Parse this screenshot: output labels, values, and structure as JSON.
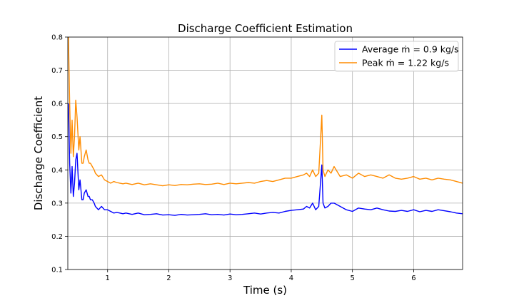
{
  "chart_data": {
    "type": "line",
    "title": "Discharge Coefficient Estimation",
    "xlabel": "Time (s)",
    "ylabel": "Discharge Coefficient",
    "xlim": [
      0.35,
      6.8
    ],
    "ylim": [
      0.1,
      0.8
    ],
    "xticks": [
      1,
      2,
      3,
      4,
      5,
      6
    ],
    "yticks": [
      0.1,
      0.2,
      0.3,
      0.4,
      0.5,
      0.6,
      0.7,
      0.8
    ],
    "grid": true,
    "legend_position": "top-right",
    "series": [
      {
        "name": "Average ṁ = 0.9 kg/s",
        "color": "#0000ff",
        "x": [
          0.36,
          0.38,
          0.4,
          0.42,
          0.44,
          0.46,
          0.48,
          0.5,
          0.53,
          0.55,
          0.58,
          0.6,
          0.62,
          0.65,
          0.68,
          0.7,
          0.72,
          0.75,
          0.78,
          0.8,
          0.85,
          0.9,
          0.95,
          1.0,
          1.05,
          1.1,
          1.15,
          1.2,
          1.25,
          1.3,
          1.4,
          1.5,
          1.6,
          1.7,
          1.8,
          1.9,
          2.0,
          2.1,
          2.2,
          2.3,
          2.4,
          2.5,
          2.6,
          2.7,
          2.8,
          2.9,
          3.0,
          3.1,
          3.2,
          3.3,
          3.4,
          3.5,
          3.6,
          3.7,
          3.8,
          3.9,
          4.0,
          4.1,
          4.2,
          4.25,
          4.3,
          4.35,
          4.4,
          4.45,
          4.5,
          4.52,
          4.55,
          4.6,
          4.65,
          4.7,
          4.8,
          4.9,
          5.0,
          5.1,
          5.2,
          5.3,
          5.4,
          5.5,
          5.6,
          5.7,
          5.8,
          5.9,
          6.0,
          6.1,
          6.2,
          6.3,
          6.4,
          6.5,
          6.6,
          6.7,
          6.8
        ],
        "values": [
          0.6,
          0.42,
          0.33,
          0.41,
          0.32,
          0.36,
          0.43,
          0.45,
          0.34,
          0.37,
          0.31,
          0.31,
          0.33,
          0.34,
          0.32,
          0.32,
          0.31,
          0.31,
          0.3,
          0.29,
          0.28,
          0.29,
          0.28,
          0.28,
          0.275,
          0.27,
          0.272,
          0.27,
          0.268,
          0.27,
          0.266,
          0.27,
          0.265,
          0.266,
          0.268,
          0.264,
          0.265,
          0.263,
          0.266,
          0.264,
          0.265,
          0.266,
          0.268,
          0.265,
          0.266,
          0.264,
          0.267,
          0.265,
          0.266,
          0.268,
          0.27,
          0.267,
          0.27,
          0.272,
          0.27,
          0.275,
          0.278,
          0.28,
          0.282,
          0.29,
          0.285,
          0.3,
          0.28,
          0.29,
          0.415,
          0.3,
          0.285,
          0.29,
          0.3,
          0.3,
          0.29,
          0.28,
          0.275,
          0.285,
          0.282,
          0.28,
          0.285,
          0.28,
          0.276,
          0.275,
          0.278,
          0.275,
          0.28,
          0.274,
          0.278,
          0.275,
          0.28,
          0.277,
          0.274,
          0.27,
          0.268
        ]
      },
      {
        "name": "Peak ṁ = 1.22 kg/s",
        "color": "#ff8c00",
        "x": [
          0.36,
          0.38,
          0.4,
          0.42,
          0.44,
          0.46,
          0.48,
          0.5,
          0.53,
          0.55,
          0.58,
          0.6,
          0.62,
          0.65,
          0.68,
          0.7,
          0.72,
          0.75,
          0.78,
          0.8,
          0.85,
          0.9,
          0.95,
          1.0,
          1.05,
          1.1,
          1.15,
          1.2,
          1.25,
          1.3,
          1.4,
          1.5,
          1.6,
          1.7,
          1.8,
          1.9,
          2.0,
          2.1,
          2.2,
          2.3,
          2.4,
          2.5,
          2.6,
          2.7,
          2.8,
          2.9,
          3.0,
          3.1,
          3.2,
          3.3,
          3.4,
          3.5,
          3.6,
          3.7,
          3.8,
          3.9,
          4.0,
          4.1,
          4.2,
          4.25,
          4.3,
          4.35,
          4.4,
          4.45,
          4.5,
          4.52,
          4.55,
          4.6,
          4.65,
          4.7,
          4.8,
          4.9,
          5.0,
          5.1,
          5.2,
          5.3,
          5.4,
          5.5,
          5.6,
          5.7,
          5.8,
          5.9,
          6.0,
          6.1,
          6.2,
          6.3,
          6.4,
          6.5,
          6.6,
          6.7,
          6.8
        ],
        "values": [
          0.8,
          0.6,
          0.45,
          0.55,
          0.44,
          0.5,
          0.61,
          0.56,
          0.46,
          0.5,
          0.42,
          0.42,
          0.44,
          0.46,
          0.43,
          0.42,
          0.42,
          0.41,
          0.4,
          0.39,
          0.38,
          0.385,
          0.37,
          0.365,
          0.36,
          0.365,
          0.362,
          0.36,
          0.358,
          0.36,
          0.356,
          0.36,
          0.355,
          0.358,
          0.355,
          0.352,
          0.355,
          0.353,
          0.356,
          0.355,
          0.357,
          0.358,
          0.356,
          0.357,
          0.36,
          0.356,
          0.36,
          0.358,
          0.36,
          0.362,
          0.36,
          0.365,
          0.368,
          0.365,
          0.37,
          0.375,
          0.375,
          0.38,
          0.385,
          0.39,
          0.38,
          0.4,
          0.38,
          0.39,
          0.565,
          0.4,
          0.38,
          0.4,
          0.39,
          0.41,
          0.38,
          0.385,
          0.375,
          0.39,
          0.38,
          0.385,
          0.38,
          0.375,
          0.385,
          0.375,
          0.372,
          0.375,
          0.38,
          0.372,
          0.375,
          0.37,
          0.375,
          0.372,
          0.37,
          0.365,
          0.36
        ]
      }
    ]
  }
}
